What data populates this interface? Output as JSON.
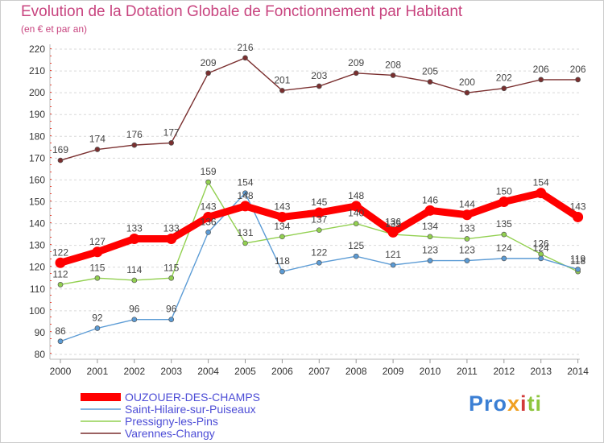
{
  "header": {
    "title": "Evolution de la Dotation Globale de Fonctionnement par Habitant",
    "subtitle": "(en € et par an)"
  },
  "logo": {
    "text": "Proxiti",
    "parts": [
      "Pro",
      "x",
      "i",
      "ti"
    ]
  },
  "colors": {
    "main": "#ff0000",
    "blue": "#5b9bd5",
    "green": "#92d050",
    "brown": "#7a2f2f",
    "title": "#c8447f",
    "legend_text": "#4d4dd6"
  },
  "chart_data": {
    "type": "line",
    "title": "Evolution de la Dotation Globale de Fonctionnement par Habitant",
    "subtitle": "(en € et par an)",
    "xlabel": "",
    "ylabel": "",
    "ylim": [
      80,
      220
    ],
    "yticks": [
      80,
      90,
      100,
      110,
      120,
      130,
      140,
      150,
      160,
      170,
      180,
      190,
      200,
      210,
      220
    ],
    "categories": [
      "2000",
      "2001",
      "2002",
      "2003",
      "2004",
      "2005",
      "2006",
      "2007",
      "2008",
      "2009",
      "2010",
      "2011",
      "2012",
      "2013",
      "2014"
    ],
    "grid": "horizontal dashed",
    "legend_position": "bottom-left",
    "series": [
      {
        "name": "Varennes-Changy",
        "color": "#7a2f2f",
        "width": "thin",
        "values": [
          169,
          174,
          176,
          177,
          209,
          216,
          201,
          203,
          209,
          208,
          205,
          200,
          202,
          206,
          206
        ]
      },
      {
        "name": "Pressigny-les-Pins",
        "color": "#92d050",
        "width": "thin",
        "values": [
          112,
          115,
          114,
          115,
          159,
          131,
          134,
          137,
          140,
          135,
          134,
          133,
          135,
          126,
          118
        ]
      },
      {
        "name": "Saint-Hilaire-sur-Puiseaux",
        "color": "#5b9bd5",
        "width": "thin",
        "values": [
          86,
          92,
          96,
          96,
          136,
          154,
          118,
          122,
          125,
          121,
          123,
          123,
          124,
          124,
          119
        ]
      },
      {
        "name": "OUZOUER-DES-CHAMPS",
        "color": "#ff0000",
        "width": "thick",
        "values": [
          122,
          127,
          133,
          133,
          143,
          148,
          143,
          145,
          148,
          136,
          146,
          144,
          150,
          154,
          143
        ]
      }
    ],
    "legend": [
      "OUZOUER-DES-CHAMPS",
      "Saint-Hilaire-sur-Puiseaux",
      "Pressigny-les-Pins",
      "Varennes-Changy"
    ]
  }
}
